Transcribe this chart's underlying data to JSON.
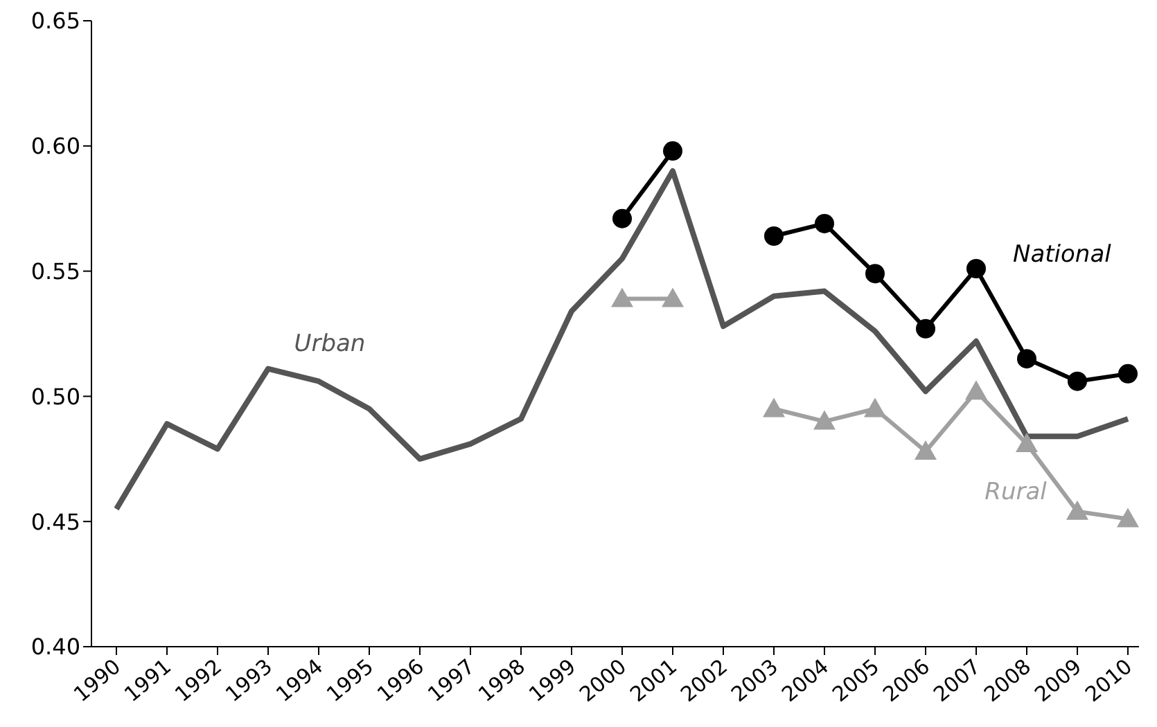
{
  "chart_data": {
    "type": "line",
    "categories": [
      "1990",
      "1991",
      "1992",
      "1993",
      "1994",
      "1995",
      "1996",
      "1997",
      "1998",
      "1999",
      "2000",
      "2001",
      "2002",
      "2003",
      "2004",
      "2005",
      "2006",
      "2007",
      "2008",
      "2009",
      "2010"
    ],
    "series": [
      {
        "name": "Urban",
        "color": "#555555",
        "marker": "none",
        "values": [
          0.455,
          0.489,
          0.479,
          0.511,
          0.506,
          0.495,
          0.475,
          0.481,
          0.491,
          0.534,
          0.555,
          0.59,
          0.528,
          0.54,
          0.542,
          0.526,
          0.502,
          0.522,
          0.484,
          0.484,
          0.491
        ]
      },
      {
        "name": "National",
        "color": "#000000",
        "marker": "circle",
        "values": [
          null,
          null,
          null,
          null,
          null,
          null,
          null,
          null,
          null,
          null,
          0.571,
          0.598,
          null,
          0.564,
          0.569,
          0.549,
          0.527,
          0.551,
          0.515,
          0.506,
          0.509
        ]
      },
      {
        "name": "Rural",
        "color": "#a0a0a0",
        "marker": "triangle",
        "values": [
          null,
          null,
          null,
          null,
          null,
          null,
          null,
          null,
          null,
          null,
          0.539,
          0.539,
          null,
          0.495,
          0.49,
          0.495,
          0.478,
          0.502,
          0.481,
          0.454,
          0.451
        ]
      }
    ],
    "ylim": [
      0.4,
      0.65
    ],
    "yticks": [
      {
        "value": 0.4,
        "label": "0.40"
      },
      0.45,
      {
        "value": 0.5,
        "label": "0.50"
      },
      0.55,
      {
        "value": 0.6,
        "label": "0.60"
      },
      0.65
    ],
    "grid": false,
    "line_style": "solid"
  }
}
